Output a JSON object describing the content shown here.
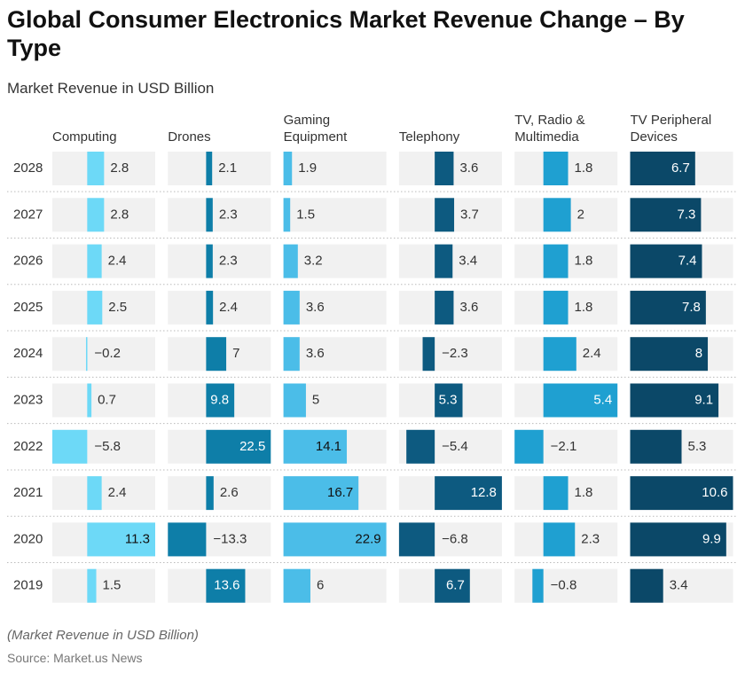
{
  "chart_data": {
    "type": "bar",
    "title": "Global Consumer Electronics Market Revenue Change – By Type",
    "subtitle": "Market Revenue in USD Billion",
    "note": "(Market Revenue in USD Billion)",
    "source": "Source: Market.us News",
    "categories": [
      "2028",
      "2027",
      "2026",
      "2025",
      "2024",
      "2023",
      "2022",
      "2021",
      "2020",
      "2019"
    ],
    "series": [
      {
        "name": "Computing",
        "color": "#6dd9f7",
        "xlim": [
          -5.8,
          11.3
        ],
        "values": [
          2.8,
          2.8,
          2.4,
          2.5,
          -0.2,
          0.7,
          -5.8,
          2.4,
          11.3,
          1.5
        ],
        "value_labels": [
          "2.8",
          "2.8",
          "2.4",
          "2.5",
          "−0.2",
          "0.7",
          "−5.8",
          "2.4",
          "11.3",
          "1.5"
        ]
      },
      {
        "name": "Drones",
        "color": "#0e7ea8",
        "xlim": [
          -13.3,
          22.5
        ],
        "values": [
          2.1,
          2.3,
          2.3,
          2.4,
          7,
          9.8,
          22.5,
          2.6,
          -13.3,
          13.6
        ],
        "value_labels": [
          "2.1",
          "2.3",
          "2.3",
          "2.4",
          "7",
          "9.8",
          "22.5",
          "2.6",
          "−13.3",
          "13.6"
        ]
      },
      {
        "name": "Gaming Equipment",
        "color": "#4bbde8",
        "xlim": [
          0,
          22.9
        ],
        "values": [
          1.9,
          1.5,
          3.2,
          3.6,
          3.6,
          5,
          14.1,
          16.7,
          22.9,
          6
        ],
        "value_labels": [
          "1.9",
          "1.5",
          "3.2",
          "3.6",
          "3.6",
          "5",
          "14.1",
          "16.7",
          "22.9",
          "6"
        ]
      },
      {
        "name": "Telephony",
        "color": "#0d5a80",
        "xlim": [
          -6.8,
          12.8
        ],
        "values": [
          3.6,
          3.7,
          3.4,
          3.6,
          -2.3,
          5.3,
          -5.4,
          12.8,
          -6.8,
          6.7
        ],
        "value_labels": [
          "3.6",
          "3.7",
          "3.4",
          "3.6",
          "−2.3",
          "5.3",
          "−5.4",
          "12.8",
          "−6.8",
          "6.7"
        ]
      },
      {
        "name": "TV, Radio & Multimedia",
        "color": "#1fa0d1",
        "xlim": [
          -2.1,
          5.4
        ],
        "values": [
          1.8,
          2,
          1.8,
          1.8,
          2.4,
          5.4,
          -2.1,
          1.8,
          2.3,
          -0.8
        ],
        "value_labels": [
          "1.8",
          "2",
          "1.8",
          "1.8",
          "2.4",
          "5.4",
          "−2.1",
          "1.8",
          "2.3",
          "−0.8"
        ]
      },
      {
        "name": "TV Peripheral Devices",
        "color": "#0b4868",
        "xlim": [
          0,
          10.6
        ],
        "values": [
          6.7,
          7.3,
          7.4,
          7.8,
          8,
          9.1,
          5.3,
          10.6,
          9.9,
          3.4
        ],
        "value_labels": [
          "6.7",
          "7.3",
          "7.4",
          "7.8",
          "8",
          "9.1",
          "5.3",
          "10.6",
          "9.9",
          "3.4"
        ]
      }
    ]
  }
}
